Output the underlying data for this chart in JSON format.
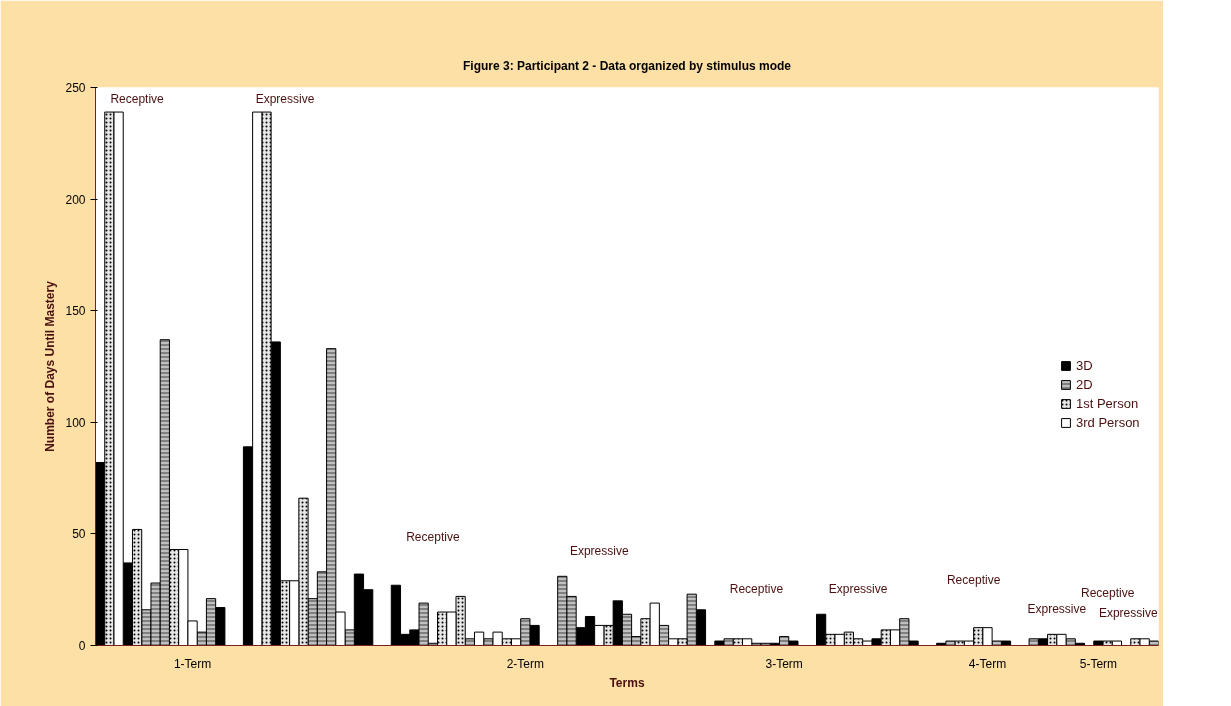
{
  "chart_data": {
    "type": "bar",
    "title": "Figure 3: Participant 2 - Data organized by stimulus mode",
    "xlabel": "Terms",
    "ylabel": "Number of Days Until Mastery",
    "categories": [
      null,
      null,
      null,
      null,
      null,
      null,
      null,
      null,
      null,
      null,
      "1-Term",
      null,
      null,
      null,
      null,
      null,
      null,
      null,
      null,
      null,
      null,
      null,
      null,
      null,
      null,
      null,
      null,
      null,
      null,
      null,
      null,
      null,
      null,
      null,
      null,
      null,
      null,
      null,
      null,
      null,
      null,
      null,
      null,
      null,
      null,
      null,
      "2-Term",
      null,
      null,
      null,
      null,
      null,
      null,
      null,
      null,
      null,
      null,
      null,
      null,
      null,
      null,
      null,
      null,
      null,
      null,
      null,
      null,
      null,
      null,
      null,
      null,
      null,
      null,
      null,
      "3-Term",
      null,
      null,
      null,
      null,
      null,
      null,
      null,
      null,
      null,
      null,
      null,
      null,
      null,
      null,
      null,
      null,
      null,
      null,
      null,
      null,
      null,
      "4-Term",
      null,
      null,
      null,
      null,
      null,
      null,
      null,
      null,
      null,
      null,
      null,
      "5-Term",
      null,
      null,
      null,
      null,
      null,
      null
    ],
    "ylim": [
      0,
      250
    ],
    "yticks": [
      0,
      50,
      100,
      150,
      200,
      250
    ],
    "grid": false,
    "legend": "right",
    "series": [
      {
        "name": "3D",
        "color": "#000000",
        "values": [
          82,
          null,
          null,
          37,
          null,
          null,
          null,
          null,
          null,
          null,
          null,
          null,
          null,
          17,
          null,
          null,
          89,
          null,
          null,
          136,
          null,
          null,
          null,
          null,
          null,
          null,
          null,
          null,
          32,
          25,
          null,
          null,
          27,
          5,
          7,
          null,
          null,
          null,
          null,
          null,
          null,
          null,
          null,
          null,
          null,
          null,
          null,
          9,
          null,
          null,
          null,
          null,
          8,
          13,
          null,
          null,
          20,
          null,
          null,
          null,
          null,
          null,
          null,
          null,
          null,
          16,
          null,
          2,
          null,
          null,
          null,
          null,
          null,
          1,
          null,
          2,
          null,
          null,
          14,
          null,
          null,
          null,
          null,
          null,
          3,
          null,
          null,
          null,
          2,
          null,
          null,
          1,
          null,
          null,
          null,
          null,
          null,
          null,
          2,
          null,
          null,
          null,
          3,
          null,
          null,
          null,
          1,
          null,
          2,
          null,
          null,
          null,
          null,
          null,
          null
        ]
      },
      {
        "name": "2D",
        "color": "#808080",
        "values": [
          null,
          null,
          null,
          null,
          null,
          16,
          28,
          137,
          null,
          null,
          null,
          6,
          21,
          null,
          null,
          null,
          null,
          null,
          null,
          null,
          null,
          null,
          null,
          21,
          33,
          133,
          null,
          7,
          null,
          null,
          null,
          null,
          null,
          null,
          null,
          19,
          1,
          null,
          null,
          null,
          3,
          null,
          3,
          null,
          null,
          null,
          12,
          null,
          null,
          null,
          31,
          22,
          null,
          null,
          null,
          null,
          null,
          14,
          4,
          null,
          null,
          9,
          null,
          null,
          23,
          null,
          null,
          null,
          3,
          null,
          null,
          1,
          1,
          null,
          4,
          null,
          null,
          null,
          null,
          null,
          null,
          null,
          null,
          null,
          null,
          null,
          null,
          12,
          null,
          null,
          null,
          null,
          2,
          null,
          null,
          null,
          null,
          2,
          null,
          null,
          null,
          3,
          null,
          null,
          null,
          3,
          null,
          null,
          null,
          null,
          null,
          null,
          null,
          null,
          2
        ]
      },
      {
        "name": "1st Person",
        "color": "#e6e6e6",
        "values": [
          null,
          239,
          null,
          null,
          52,
          null,
          null,
          null,
          43,
          null,
          null,
          null,
          null,
          null,
          null,
          null,
          null,
          null,
          239,
          null,
          29,
          null,
          66,
          null,
          null,
          null,
          null,
          null,
          null,
          null,
          null,
          null,
          null,
          null,
          null,
          null,
          null,
          15,
          null,
          22,
          null,
          null,
          null,
          null,
          3,
          null,
          null,
          null,
          null,
          null,
          null,
          null,
          null,
          null,
          null,
          9,
          null,
          null,
          null,
          12,
          null,
          null,
          null,
          3,
          null,
          null,
          null,
          null,
          null,
          3,
          null,
          null,
          null,
          null,
          null,
          null,
          null,
          null,
          null,
          5,
          null,
          6,
          3,
          null,
          null,
          7,
          null,
          null,
          null,
          null,
          null,
          null,
          null,
          2,
          null,
          8,
          null,
          null,
          null,
          null,
          null,
          null,
          null,
          5,
          null,
          null,
          null,
          null,
          null,
          2,
          null,
          null,
          3,
          null,
          null
        ]
      },
      {
        "name": "3rd Person",
        "color": "#ffffff",
        "values": [
          null,
          null,
          239,
          null,
          null,
          null,
          null,
          null,
          null,
          43,
          11,
          null,
          null,
          null,
          null,
          null,
          null,
          239,
          null,
          null,
          null,
          29,
          null,
          null,
          null,
          null,
          15,
          null,
          null,
          null,
          null,
          null,
          null,
          null,
          null,
          null,
          null,
          null,
          15,
          null,
          null,
          6,
          null,
          6,
          null,
          3,
          null,
          null,
          null,
          null,
          null,
          null,
          null,
          null,
          9,
          null,
          null,
          null,
          null,
          null,
          19,
          null,
          3,
          null,
          null,
          null,
          null,
          null,
          null,
          null,
          3,
          null,
          null,
          null,
          null,
          null,
          null,
          null,
          null,
          null,
          5,
          null,
          null,
          2,
          null,
          null,
          7,
          null,
          null,
          null,
          null,
          null,
          null,
          null,
          2,
          null,
          8,
          null,
          null,
          null,
          null,
          null,
          null,
          null,
          5,
          null,
          null,
          null,
          null,
          null,
          2,
          null,
          null,
          3,
          null
        ]
      }
    ],
    "annotations": [
      "Receptive",
      "Expressive",
      "Receptive",
      "Expressive",
      "Receptive",
      "Expressive",
      "Receptive",
      "Expressive",
      "Receptive",
      "Expressive"
    ]
  }
}
